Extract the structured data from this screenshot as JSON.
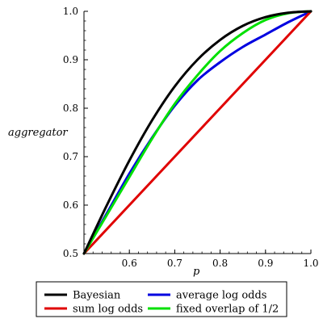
{
  "chart_data": {
    "type": "line",
    "xlabel": "p",
    "ylabel": "aggregator",
    "xlim": [
      0.5,
      1.0
    ],
    "ylim": [
      0.5,
      1.0
    ],
    "xticks": [
      0.6,
      0.7,
      0.8,
      0.9,
      1.0
    ],
    "xtick_labels": [
      "0.6",
      "0.7",
      "0.8",
      "0.9",
      "1.0"
    ],
    "yticks": [
      0.5,
      0.6,
      0.7,
      0.8,
      0.9,
      1.0
    ],
    "ytick_labels": [
      "0.5",
      "0.6",
      "0.7",
      "0.8",
      "0.9",
      "1.0"
    ],
    "x": [
      0.5,
      0.55,
      0.6,
      0.65,
      0.7,
      0.75,
      0.8,
      0.85,
      0.9,
      0.95,
      1.0
    ],
    "series": [
      {
        "name": "Bayesian",
        "color": "#000000",
        "values": [
          0.5,
          0.599,
          0.692,
          0.775,
          0.845,
          0.9,
          0.941,
          0.97,
          0.988,
          0.997,
          1.0
        ]
      },
      {
        "name": "sum log odds",
        "color": "#e00000",
        "values": [
          0.5,
          0.55,
          0.6,
          0.65,
          0.7,
          0.75,
          0.8,
          0.85,
          0.9,
          0.95,
          1.0
        ]
      },
      {
        "name": "average log odds",
        "color": "#0000e0",
        "values": [
          0.5,
          0.5825,
          0.665,
          0.739,
          0.805,
          0.8575,
          0.895,
          0.9265,
          0.952,
          0.9775,
          1.0
        ]
      },
      {
        "name": "fixed overlap of 1/2",
        "color": "#00e000",
        "values": [
          0.5,
          0.579,
          0.658,
          0.737,
          0.809,
          0.868,
          0.918,
          0.955,
          0.982,
          0.996,
          1.0
        ]
      }
    ],
    "legend": {
      "placement": "bottom",
      "rows": [
        [
          "Bayesian",
          "average log odds"
        ],
        [
          "sum log odds",
          "fixed overlap of 1/2"
        ]
      ]
    },
    "grid": false
  }
}
